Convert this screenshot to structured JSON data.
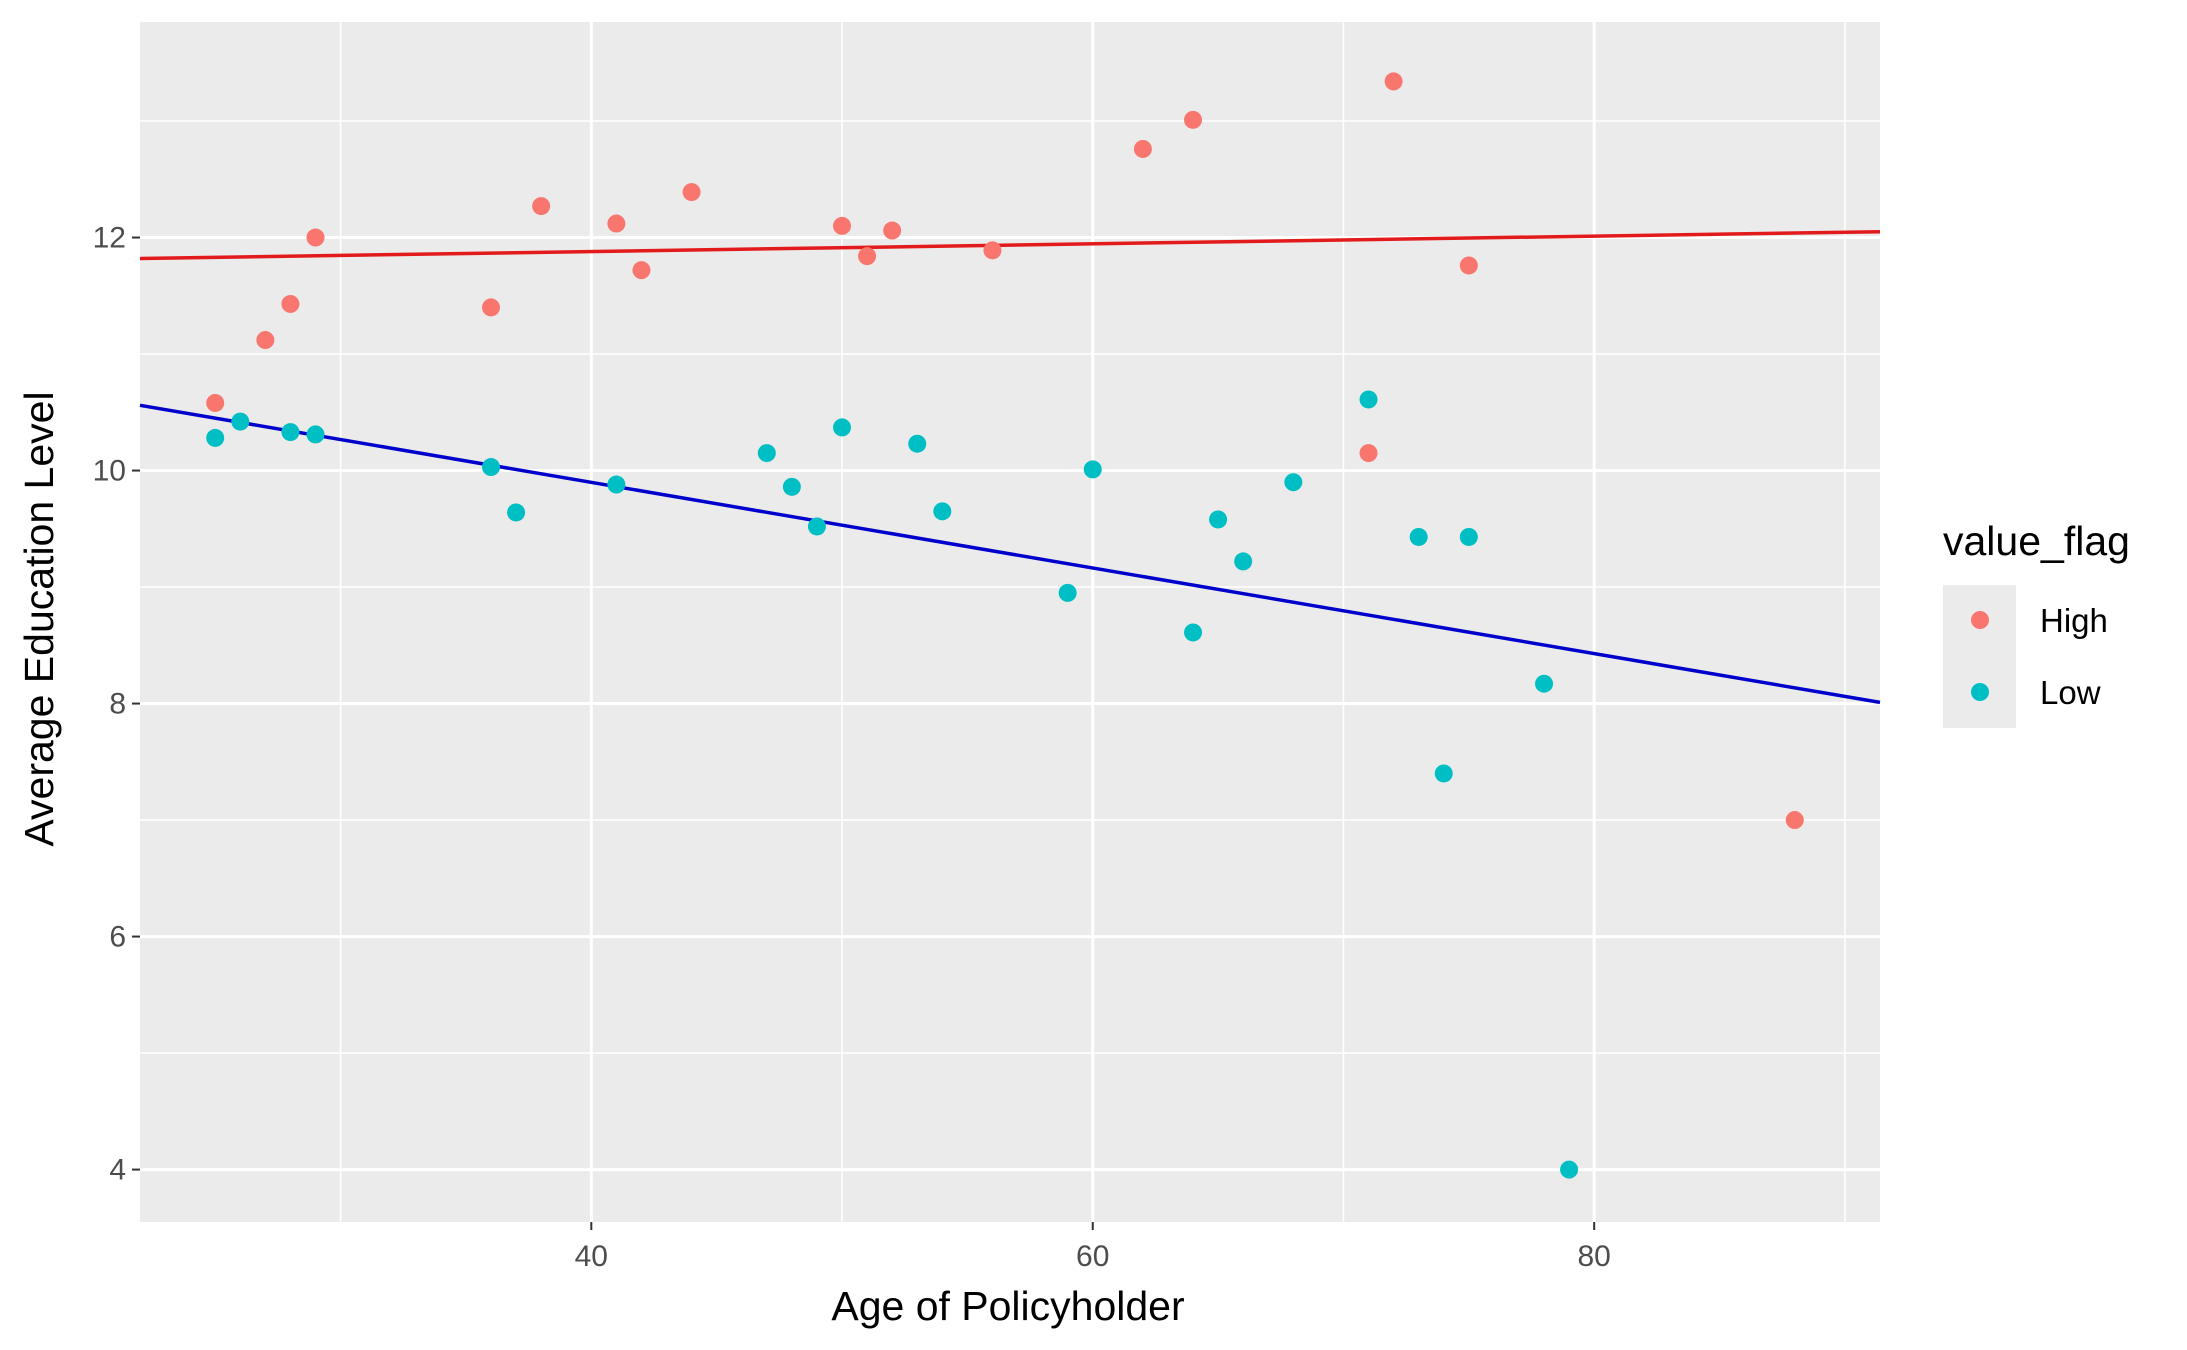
{
  "chart_data": {
    "type": "scatter",
    "xlabel": "Age of Policyholder",
    "ylabel": "Average Education Level",
    "xlim": [
      22,
      91.4
    ],
    "ylim": [
      3.55,
      13.85
    ],
    "x_ticks": [
      40,
      60,
      80
    ],
    "x_tick_labels": [
      "40",
      "60",
      "80"
    ],
    "x_minor_ticks": [
      30,
      50,
      70,
      90
    ],
    "y_ticks": [
      4,
      6,
      8,
      10,
      12
    ],
    "y_tick_labels": [
      "4",
      "6",
      "8",
      "10",
      "12"
    ],
    "y_minor_ticks": [
      5,
      7,
      9,
      11,
      13
    ],
    "grid": true,
    "panel_background": "#ebebeb",
    "legend": {
      "title": "value_flag",
      "position": "right",
      "entries": [
        {
          "label": "High",
          "color": "#f8766d"
        },
        {
          "label": "Low",
          "color": "#00bfc4"
        }
      ]
    },
    "series": [
      {
        "name": "High",
        "color": "#f8766d",
        "points": [
          {
            "x": 25,
            "y": 10.58
          },
          {
            "x": 27,
            "y": 11.12
          },
          {
            "x": 28,
            "y": 11.43
          },
          {
            "x": 29,
            "y": 12.0
          },
          {
            "x": 36,
            "y": 11.4
          },
          {
            "x": 38,
            "y": 12.27
          },
          {
            "x": 41,
            "y": 12.12
          },
          {
            "x": 42,
            "y": 11.72
          },
          {
            "x": 44,
            "y": 12.39
          },
          {
            "x": 50,
            "y": 12.1
          },
          {
            "x": 51,
            "y": 11.84
          },
          {
            "x": 52,
            "y": 12.06
          },
          {
            "x": 56,
            "y": 11.89
          },
          {
            "x": 62,
            "y": 12.76
          },
          {
            "x": 64,
            "y": 13.01
          },
          {
            "x": 71,
            "y": 10.15
          },
          {
            "x": 72,
            "y": 13.34
          },
          {
            "x": 75,
            "y": 11.76
          },
          {
            "x": 88,
            "y": 7.0
          }
        ]
      },
      {
        "name": "Low",
        "color": "#00bfc4",
        "points": [
          {
            "x": 25,
            "y": 10.28
          },
          {
            "x": 26,
            "y": 10.42
          },
          {
            "x": 28,
            "y": 10.33
          },
          {
            "x": 29,
            "y": 10.31
          },
          {
            "x": 36,
            "y": 10.03
          },
          {
            "x": 37,
            "y": 9.64
          },
          {
            "x": 41,
            "y": 9.88
          },
          {
            "x": 47,
            "y": 10.15
          },
          {
            "x": 48,
            "y": 9.86
          },
          {
            "x": 49,
            "y": 9.52
          },
          {
            "x": 50,
            "y": 10.37
          },
          {
            "x": 53,
            "y": 10.23
          },
          {
            "x": 54,
            "y": 9.65
          },
          {
            "x": 59,
            "y": 8.95
          },
          {
            "x": 60,
            "y": 10.01
          },
          {
            "x": 64,
            "y": 8.61
          },
          {
            "x": 65,
            "y": 9.58
          },
          {
            "x": 66,
            "y": 9.22
          },
          {
            "x": 68,
            "y": 9.9
          },
          {
            "x": 71,
            "y": 10.61
          },
          {
            "x": 73,
            "y": 9.43
          },
          {
            "x": 74,
            "y": 7.4
          },
          {
            "x": 75,
            "y": 9.43
          },
          {
            "x": 78,
            "y": 8.17
          },
          {
            "x": 79,
            "y": 4.0
          }
        ]
      }
    ],
    "trend_lines": [
      {
        "series": "High",
        "color": "#e31a1c",
        "x": [
          22,
          91.4
        ],
        "y": [
          11.82,
          12.05
        ]
      },
      {
        "series": "Low",
        "color": "#0000cd",
        "x": [
          22,
          91.4
        ],
        "y": [
          10.56,
          8.01
        ]
      }
    ]
  }
}
